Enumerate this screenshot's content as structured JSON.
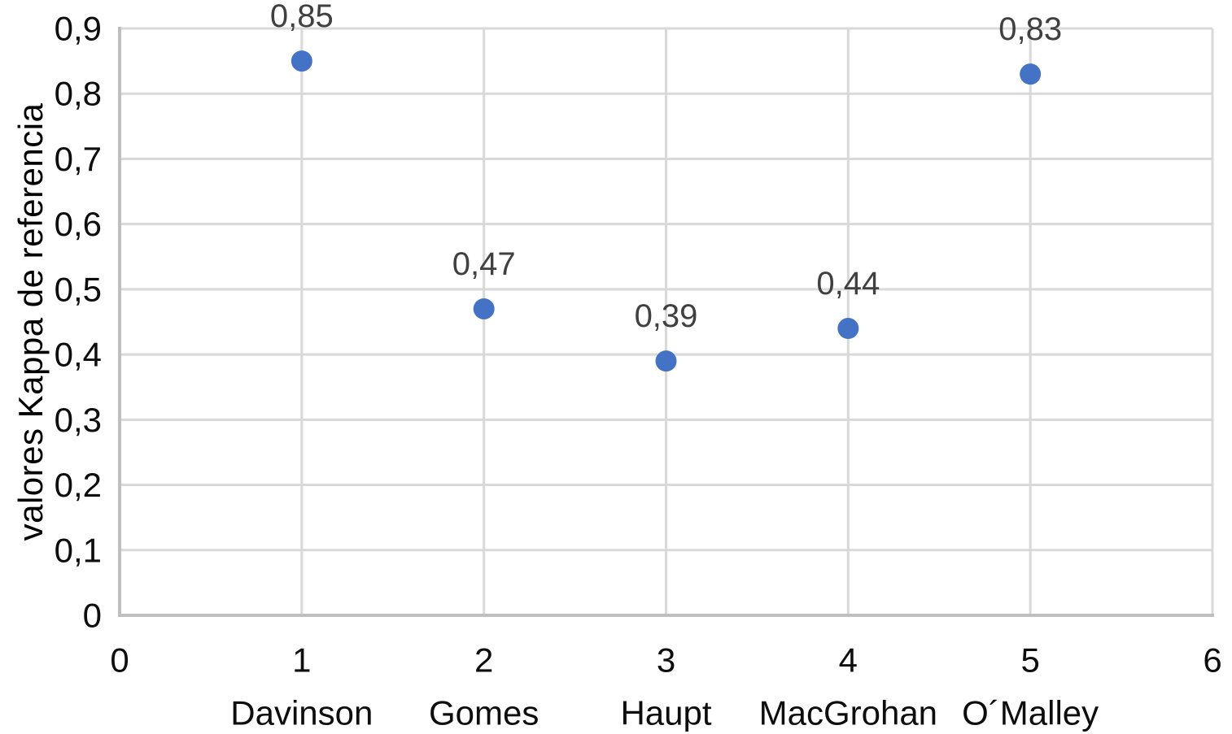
{
  "chart_data": {
    "type": "scatter",
    "title": "",
    "xlabel": "",
    "ylabel": "valores Kappa de referencia",
    "x": [
      1,
      2,
      3,
      4,
      5
    ],
    "y": [
      0.85,
      0.47,
      0.39,
      0.44,
      0.83
    ],
    "point_labels": [
      "0,85",
      "0,47",
      "0,39",
      "0,44",
      "0,83"
    ],
    "categories": [
      "Davinson",
      "Gomes",
      "Haupt",
      "MacGrohan",
      "O´Malley"
    ],
    "x_ticks": [
      "0",
      "1",
      "2",
      "3",
      "4",
      "5",
      "6"
    ],
    "y_ticks": [
      "0",
      "0,1",
      "0,2",
      "0,3",
      "0,4",
      "0,5",
      "0,6",
      "0,7",
      "0,8",
      "0,9"
    ],
    "xlim": [
      0,
      6
    ],
    "ylim": [
      0,
      0.9
    ],
    "grid": true,
    "legend": "none",
    "colors": {
      "point": "#4472C4",
      "gridline": "#D9D9D9",
      "axis_line": "#BFBFBF",
      "tick_text": "#0d0d0d",
      "data_label": "#404040"
    }
  }
}
